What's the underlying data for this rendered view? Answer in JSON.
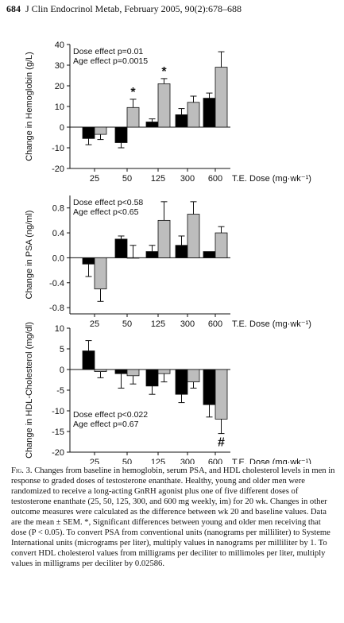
{
  "header": {
    "page_number": "684",
    "citation": "J Clin Endocrinol Metab, February 2005, 90(2):678–688"
  },
  "chart_data": [
    {
      "type": "bar",
      "ylabel": "Change in Hemoglobin (g/L)",
      "xlabel": "T.E. Dose (mg·wk⁻¹)",
      "categories": [
        "25",
        "50",
        "125",
        "300",
        "600"
      ],
      "ylim": [
        -20,
        40
      ],
      "yticks": [
        -20,
        -10,
        0,
        10,
        20,
        30,
        40
      ],
      "series": [
        {
          "color": "#000000",
          "values": [
            -5.5,
            -7.5,
            2.5,
            6,
            14
          ],
          "errors": [
            3,
            2.5,
            1.5,
            3,
            2.5
          ]
        },
        {
          "color": "#bdbdbd",
          "values": [
            -3.5,
            9.5,
            21,
            12,
            29
          ],
          "errors": [
            2.5,
            4,
            2.5,
            3,
            7.5
          ]
        }
      ],
      "annotations": [
        {
          "category": "50",
          "text": "*"
        },
        {
          "category": "125",
          "text": "*"
        }
      ],
      "stats": [
        "Dose effect p=0.01",
        "Age effect  p=0.0015"
      ]
    },
    {
      "type": "bar",
      "ylabel": "Change in PSA (ng/ml)",
      "xlabel": "T.E. Dose (mg·wk⁻¹)",
      "categories": [
        "25",
        "50",
        "125",
        "300",
        "600"
      ],
      "ylim": [
        -0.9,
        1.0
      ],
      "yticks": [
        -0.8,
        -0.4,
        0.0,
        0.4,
        0.8
      ],
      "series": [
        {
          "color": "#000000",
          "values": [
            -0.1,
            0.3,
            0.1,
            0.2,
            0.1
          ],
          "errors": [
            0.2,
            0.05,
            0.1,
            0.15,
            0.0
          ]
        },
        {
          "color": "#bdbdbd",
          "values": [
            -0.5,
            0.0,
            0.6,
            0.7,
            0.4
          ],
          "errors": [
            0.2,
            0.2,
            0.3,
            0.2,
            0.1
          ]
        }
      ],
      "annotations": [],
      "stats": [
        "Dose effect p<0.58",
        "Age effect  p<0.65"
      ]
    },
    {
      "type": "bar",
      "ylabel": "Change in HDL-Cholesterol (mg/dl)",
      "xlabel": "T.E. Dose (mg·wk⁻¹)",
      "categories": [
        "25",
        "50",
        "125",
        "300",
        "600"
      ],
      "ylim": [
        -20,
        10
      ],
      "yticks": [
        -20,
        -15,
        -10,
        -5,
        0,
        5,
        10
      ],
      "series": [
        {
          "color": "#000000",
          "values": [
            4.5,
            -1,
            -4,
            -6,
            -8.5
          ],
          "errors": [
            2.5,
            3.5,
            2,
            2,
            3
          ]
        },
        {
          "color": "#bdbdbd",
          "values": [
            -0.5,
            -1.5,
            -1,
            -3,
            -12
          ],
          "errors": [
            1.5,
            2,
            2,
            1.5,
            3.5
          ]
        }
      ],
      "annotations": [
        {
          "category": "600",
          "text": "#"
        }
      ],
      "stats": [
        "Dose effect p<0.022",
        "Age effect  p=0.67"
      ]
    }
  ],
  "caption": {
    "label": "Fig. 3.",
    "text": "Changes from baseline in hemoglobin, serum PSA, and HDL cholesterol levels in men in response to graded doses of testosterone enanthate. Healthy, young and older men were randomized to receive a long-acting GnRH agonist plus one of five different doses of testosterone enanthate (25, 50, 125, 300, and 600 mg weekly, im) for 20 wk. Changes in other outcome measures were calculated as the difference between wk 20 and baseline values. Data are the mean ± SEM. *, Significant differences between young and older men receiving that dose (P < 0.05). To convert PSA from conventional units (nanograms per milliliter) to Systeme International units (micrograms per liter), multiply values in nanograms per milliliter by 1. To convert HDL cholesterol values from milligrams per deciliter to millimoles per liter, multiply values in milligrams per deciliter by 0.02586."
  }
}
